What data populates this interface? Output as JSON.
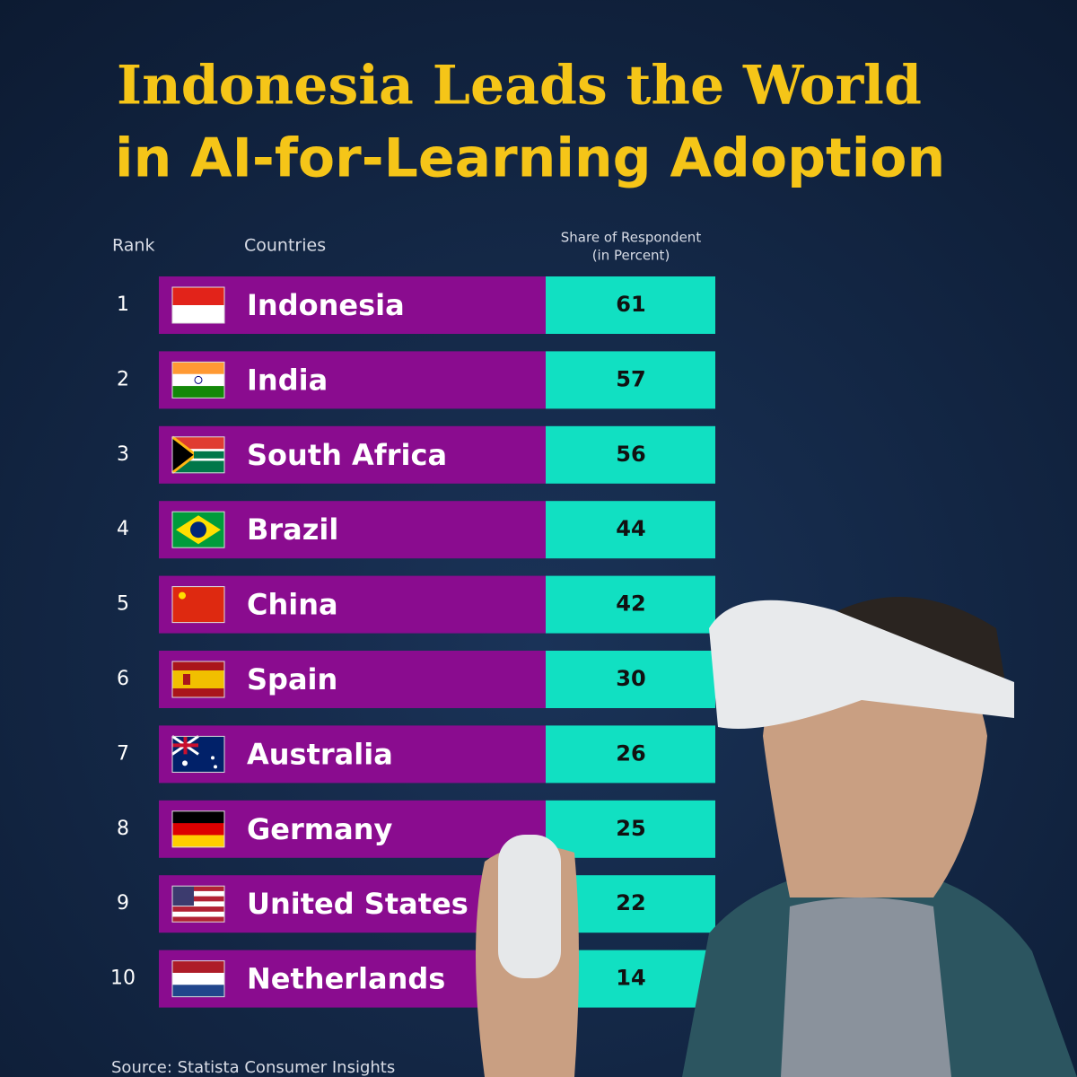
{
  "title": {
    "line1": "Indonesia Leads the World",
    "line2": "in AI-for-Learning Adoption"
  },
  "table": {
    "header": {
      "rank": "Rank",
      "country": "Countries",
      "share_line1": "Share of Respondent",
      "share_line2": "(in Percent)"
    },
    "rows": [
      {
        "rank": 1,
        "country": "Indonesia",
        "value": 61
      },
      {
        "rank": 2,
        "country": "India",
        "value": 57
      },
      {
        "rank": 3,
        "country": "South Africa",
        "value": 56
      },
      {
        "rank": 4,
        "country": "Brazil",
        "value": 44
      },
      {
        "rank": 5,
        "country": "China",
        "value": 42
      },
      {
        "rank": 6,
        "country": "Spain",
        "value": 30
      },
      {
        "rank": 7,
        "country": "Australia",
        "value": 26
      },
      {
        "rank": 8,
        "country": "Germany",
        "value": 25
      },
      {
        "rank": 9,
        "country": "United States",
        "value": 22
      },
      {
        "rank": 10,
        "country": "Netherlands",
        "value": 14
      }
    ]
  },
  "source": "Source: Statista Consumer Insights"
}
